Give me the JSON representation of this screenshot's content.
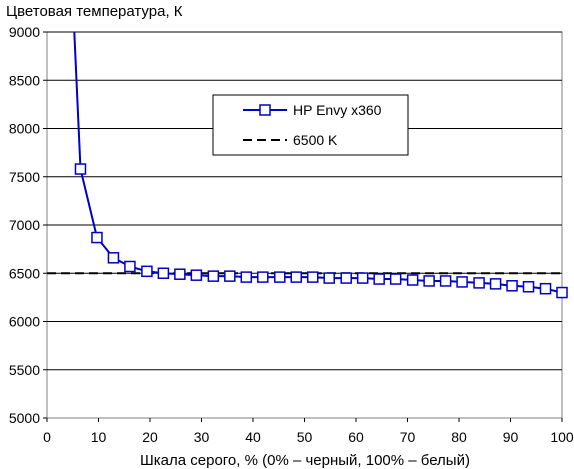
{
  "chart_data": {
    "type": "line",
    "title": "Цветовая температура, К",
    "xlabel": "Шкала серого, % (0% – черный, 100% – белый)",
    "ylabel": "",
    "xlim": [
      0,
      100
    ],
    "ylim": [
      5000,
      9000
    ],
    "x_ticks": [
      0,
      10,
      20,
      30,
      40,
      50,
      60,
      70,
      80,
      90,
      100
    ],
    "y_ticks": [
      5000,
      5500,
      6000,
      6500,
      7000,
      7500,
      8000,
      8500,
      9000
    ],
    "grid": "horizontal",
    "legend_position": "top-center",
    "series": [
      {
        "name": "HP Envy x360",
        "color": "#0000cc",
        "style": "solid",
        "marker": "square",
        "line_points": [
          {
            "x": 5.3,
            "y": 9000
          },
          {
            "x": 6.5,
            "y": 7580
          },
          {
            "x": 9.7,
            "y": 6870
          },
          {
            "x": 12.9,
            "y": 6660
          },
          {
            "x": 16.1,
            "y": 6570
          },
          {
            "x": 19.4,
            "y": 6520
          },
          {
            "x": 22.6,
            "y": 6500
          },
          {
            "x": 25.8,
            "y": 6490
          },
          {
            "x": 29.0,
            "y": 6480
          },
          {
            "x": 32.3,
            "y": 6470
          },
          {
            "x": 35.5,
            "y": 6470
          },
          {
            "x": 38.7,
            "y": 6460
          },
          {
            "x": 41.9,
            "y": 6460
          },
          {
            "x": 45.2,
            "y": 6460
          },
          {
            "x": 48.4,
            "y": 6460
          },
          {
            "x": 51.6,
            "y": 6460
          },
          {
            "x": 54.8,
            "y": 6450
          },
          {
            "x": 58.1,
            "y": 6450
          },
          {
            "x": 61.3,
            "y": 6450
          },
          {
            "x": 64.5,
            "y": 6440
          },
          {
            "x": 67.7,
            "y": 6440
          },
          {
            "x": 71.0,
            "y": 6430
          },
          {
            "x": 74.2,
            "y": 6420
          },
          {
            "x": 77.4,
            "y": 6420
          },
          {
            "x": 80.6,
            "y": 6410
          },
          {
            "x": 83.9,
            "y": 6400
          },
          {
            "x": 87.1,
            "y": 6390
          },
          {
            "x": 90.3,
            "y": 6370
          },
          {
            "x": 93.5,
            "y": 6360
          },
          {
            "x": 96.8,
            "y": 6340
          },
          {
            "x": 100.0,
            "y": 6300
          }
        ]
      },
      {
        "name": "6500 K",
        "color": "#000000",
        "style": "dashed",
        "x": [
          0,
          100
        ],
        "y": [
          6500,
          6500
        ]
      }
    ]
  }
}
